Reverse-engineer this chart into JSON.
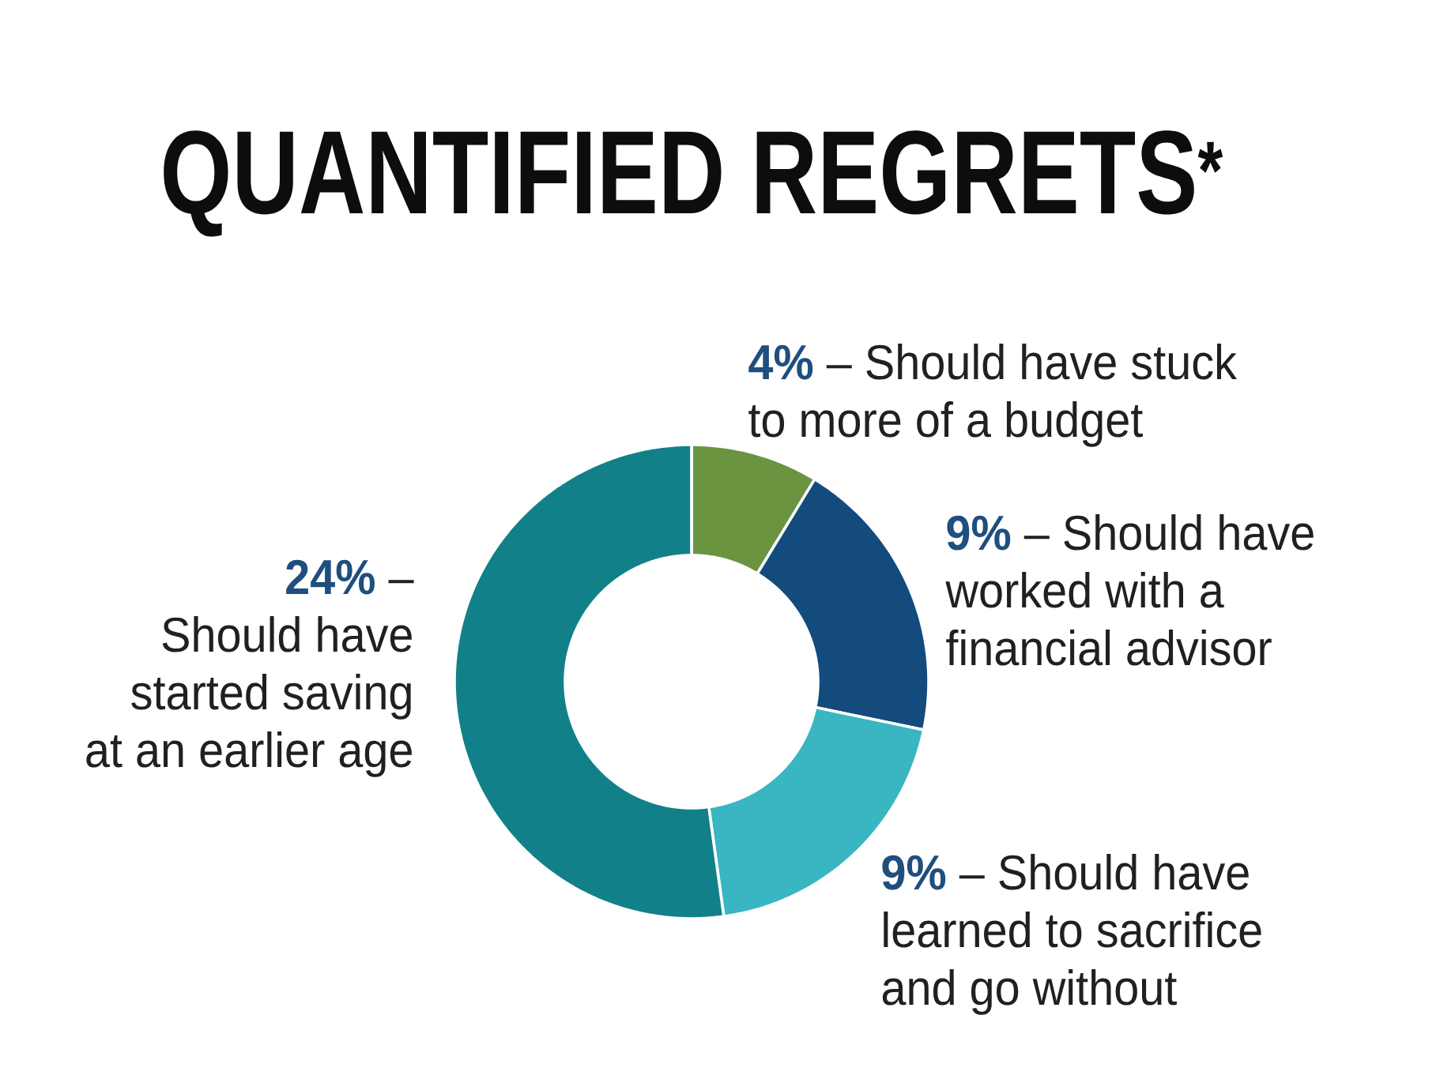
{
  "chart_data": {
    "type": "donut",
    "title": "QUANTIFIED REGRETS$^{*}$",
    "categories": [
      "– Should have stuck to more of a budget",
      "– Should have worked with a financial advisor",
      "– Should have learned to sacrifice and go without",
      "– Should have started saving at an earlier age"
    ],
    "values": [
      4,
      9,
      9,
      24
    ],
    "colors": [
      "#6a9440",
      "#134b7d",
      "#3ab5c2",
      "#128089"
    ],
    "value_labels": [
      "4%",
      "9%",
      "9%",
      "24%"
    ]
  }
}
